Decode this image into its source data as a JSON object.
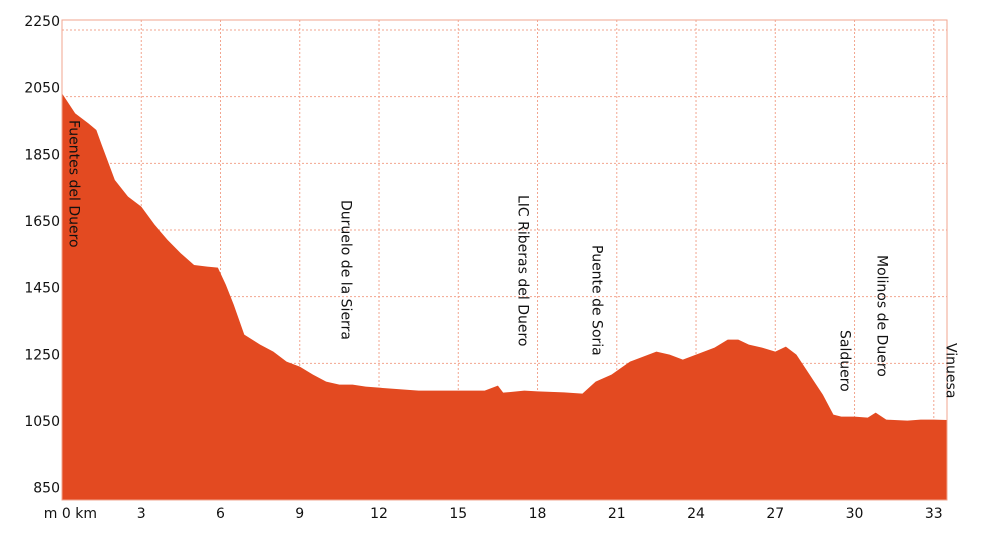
{
  "chart_data": {
    "type": "area",
    "x": [
      0,
      0.5,
      1,
      1.3,
      1.5,
      2,
      2.5,
      3,
      3.5,
      4,
      4.5,
      5,
      5.5,
      5.9,
      6.2,
      6.5,
      6.9,
      7.5,
      8,
      8.5,
      9,
      9.5,
      10,
      10.5,
      11,
      11.5,
      12,
      13.5,
      15,
      16,
      16.5,
      16.7,
      17.5,
      18,
      19,
      19.7,
      20.2,
      20.8,
      21.5,
      22.5,
      23,
      23.5,
      24,
      24.7,
      25.2,
      25.6,
      26,
      26.5,
      27,
      27.4,
      27.8,
      28.3,
      28.8,
      29.2,
      29.5,
      30,
      30.5,
      30.8,
      31.2,
      32,
      32.5,
      33,
      33.5
    ],
    "values": [
      2060,
      2000,
      1970,
      1950,
      1906,
      1800,
      1750,
      1720,
      1666,
      1620,
      1580,
      1545,
      1540,
      1537,
      1486,
      1426,
      1336,
      1306,
      1285,
      1255,
      1240,
      1216,
      1195,
      1186,
      1186,
      1180,
      1177,
      1168,
      1168,
      1168,
      1183,
      1162,
      1168,
      1166,
      1163,
      1159,
      1195,
      1216,
      1255,
      1285,
      1276,
      1261,
      1276,
      1297,
      1321,
      1321,
      1306,
      1297,
      1285,
      1300,
      1276,
      1216,
      1156,
      1096,
      1090,
      1090,
      1087,
      1102,
      1081,
      1078,
      1081,
      1081,
      1080
    ],
    "color": "#e34a21",
    "xlim": [
      0,
      33.5
    ],
    "ylim": [
      840,
      2280
    ],
    "xticks": [
      {
        "value": 0,
        "label": "m 0 km"
      },
      3,
      6,
      9,
      12,
      15,
      18,
      21,
      24,
      27,
      30,
      33
    ],
    "yticks": [
      850,
      1050,
      1250,
      1450,
      1650,
      1850,
      2050,
      2250
    ],
    "grid": true,
    "annotations": [
      {
        "text": "Fuentes del Duero",
        "x": 0.2
      },
      {
        "text": "Duruelo de la Sierra",
        "x": 10.5
      },
      {
        "text": "LIC Riberas del Duero",
        "x": 17.2
      },
      {
        "text": "Puente de Soria",
        "x": 20
      },
      {
        "text": "Salduero",
        "x": 29.4
      },
      {
        "text": "Molinos de Duero",
        "x": 30.8
      },
      {
        "text": "Vinuesa",
        "x": 33.4
      }
    ]
  }
}
